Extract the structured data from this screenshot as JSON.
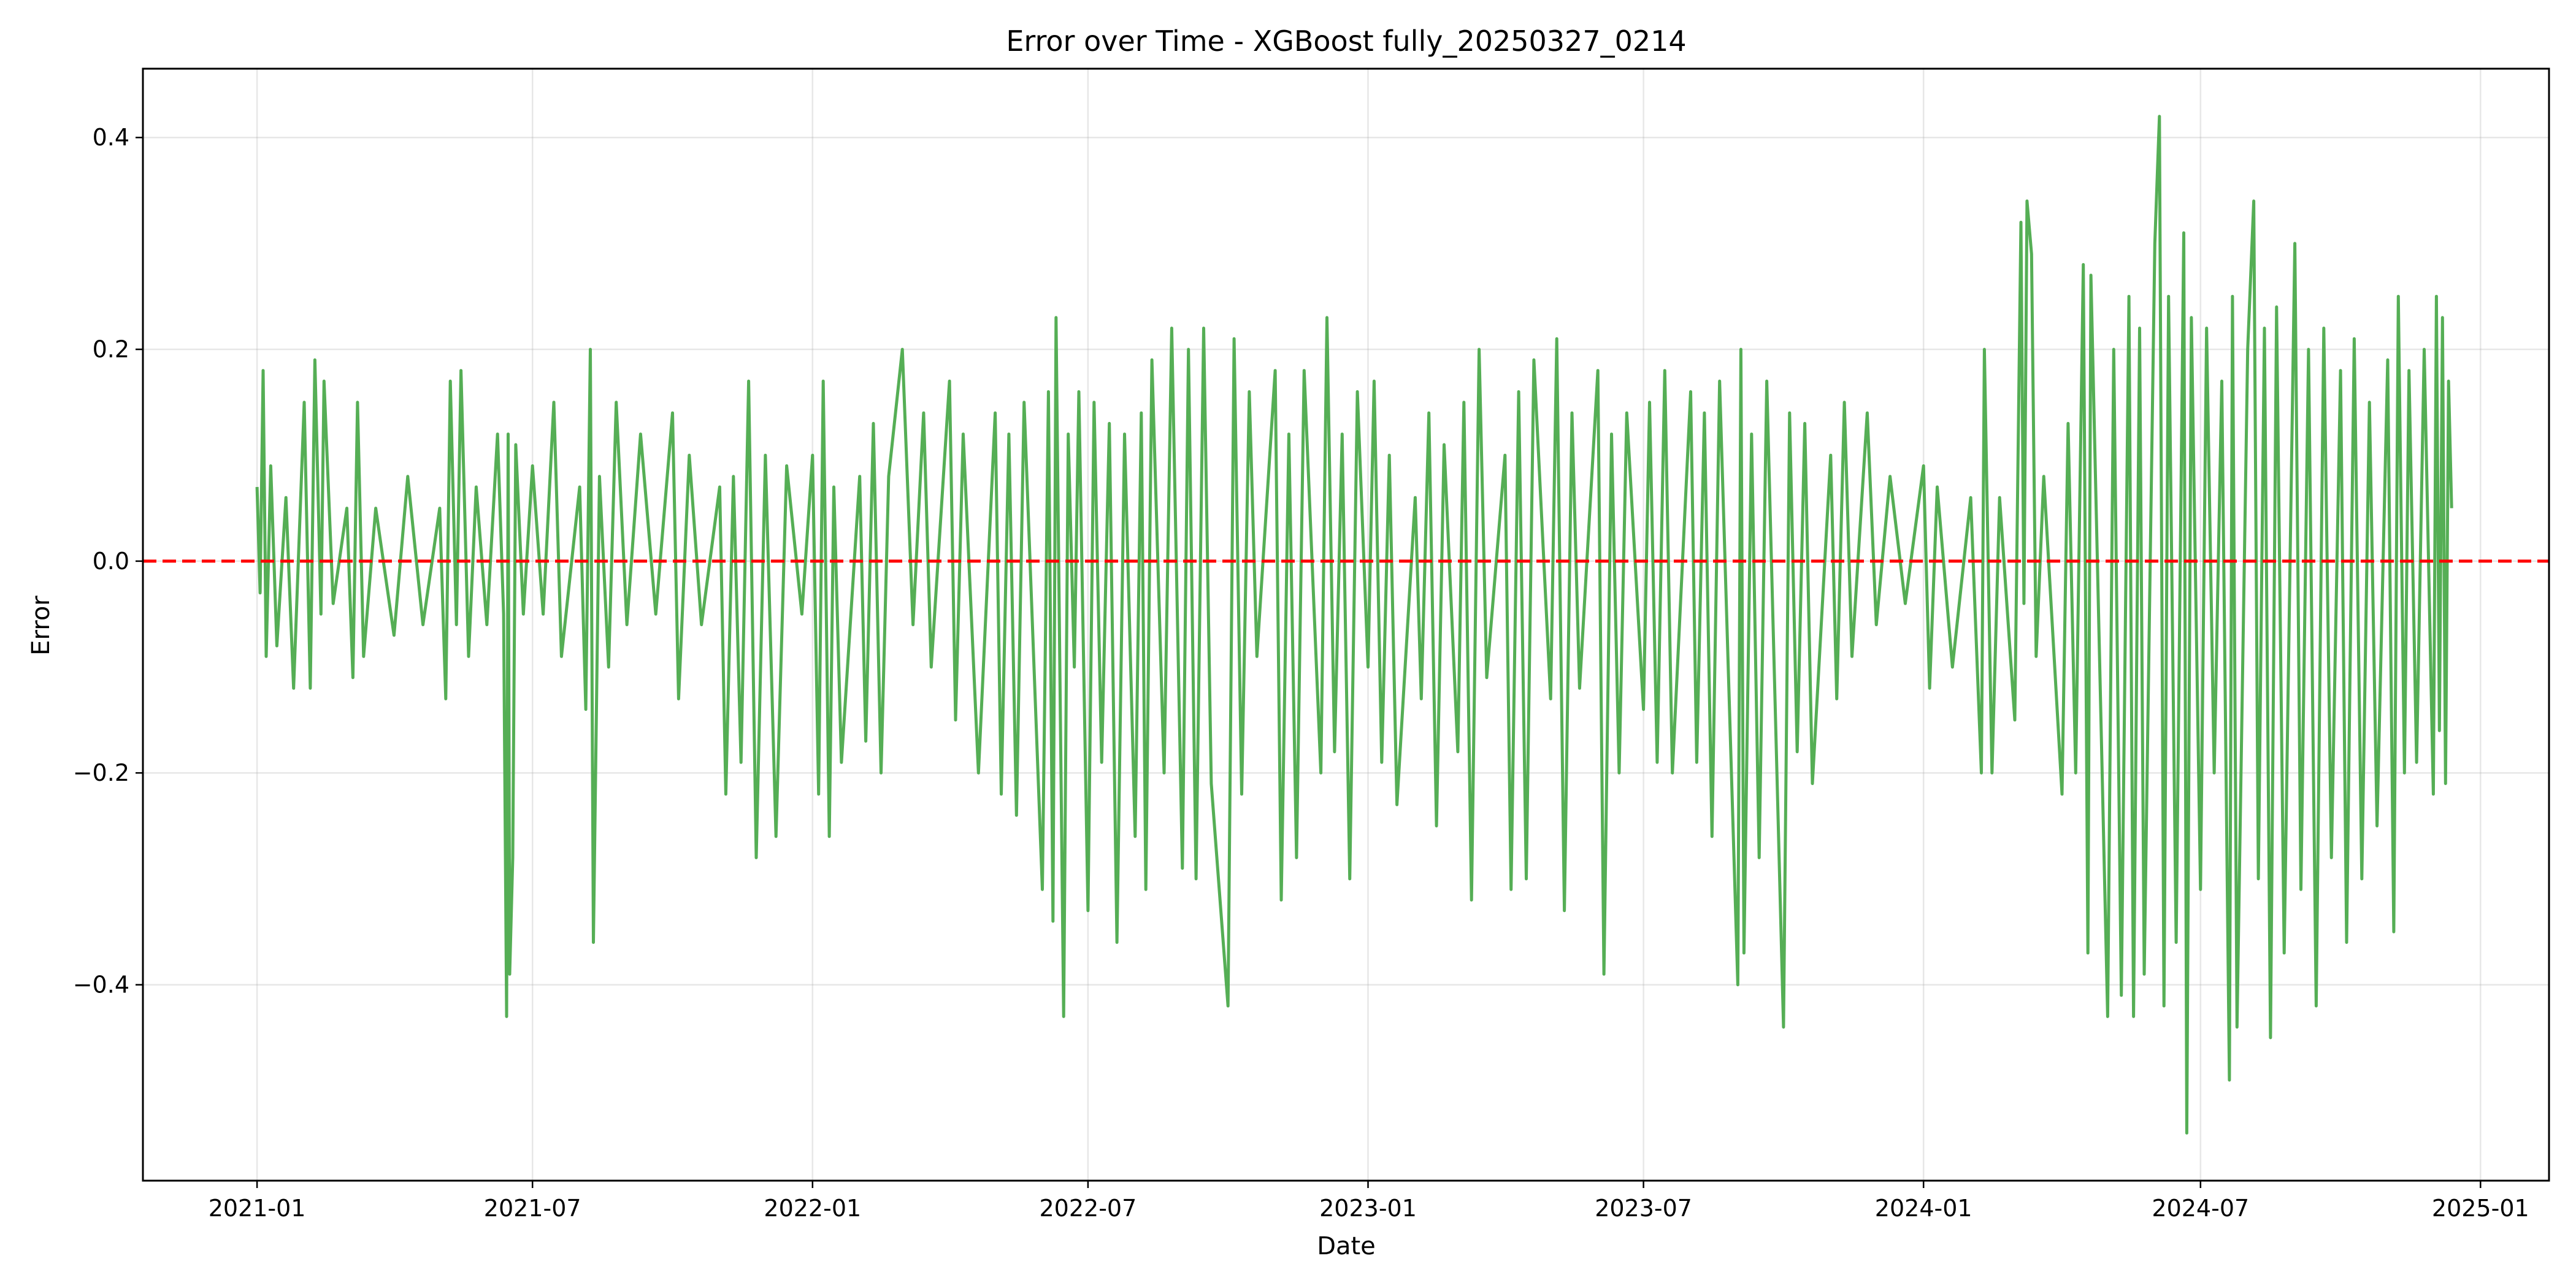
{
  "chart_data": {
    "type": "line",
    "title": "Error over Time - XGBoost fully_20250327_0214",
    "xlabel": "Date",
    "ylabel": "Error",
    "x_range": [
      "2020-10-18",
      "2025-02-15"
    ],
    "ylim": [
      -0.585,
      0.465
    ],
    "grid": true,
    "x_ticks": [
      {
        "date": "2021-01-01",
        "label": "2021-01"
      },
      {
        "date": "2021-07-01",
        "label": "2021-07"
      },
      {
        "date": "2022-01-01",
        "label": "2022-01"
      },
      {
        "date": "2022-07-01",
        "label": "2022-07"
      },
      {
        "date": "2023-01-01",
        "label": "2023-01"
      },
      {
        "date": "2023-07-01",
        "label": "2023-07"
      },
      {
        "date": "2024-01-01",
        "label": "2024-01"
      },
      {
        "date": "2024-07-01",
        "label": "2024-07"
      },
      {
        "date": "2025-01-01",
        "label": "2025-01"
      }
    ],
    "y_ticks": [
      {
        "value": 0.4,
        "label": "0.4"
      },
      {
        "value": 0.2,
        "label": "0.2"
      },
      {
        "value": 0.0,
        "label": "0.0"
      },
      {
        "value": -0.2,
        "label": "−0.2"
      },
      {
        "value": -0.4,
        "label": "−0.4"
      }
    ],
    "reference_line": {
      "y": 0.0,
      "color": "#ff0000",
      "style": "dashed"
    },
    "series": [
      {
        "color": "#4caa4c",
        "points": [
          [
            "2021-01-01",
            0.07
          ],
          [
            "2021-01-03",
            -0.03
          ],
          [
            "2021-01-05",
            0.18
          ],
          [
            "2021-01-07",
            -0.09
          ],
          [
            "2021-01-10",
            0.09
          ],
          [
            "2021-01-14",
            -0.08
          ],
          [
            "2021-01-20",
            0.06
          ],
          [
            "2021-01-25",
            -0.12
          ],
          [
            "2021-02-01",
            0.15
          ],
          [
            "2021-02-05",
            -0.12
          ],
          [
            "2021-02-08",
            0.19
          ],
          [
            "2021-02-12",
            -0.05
          ],
          [
            "2021-02-14",
            0.17
          ],
          [
            "2021-02-20",
            -0.04
          ],
          [
            "2021-03-01",
            0.05
          ],
          [
            "2021-03-05",
            -0.11
          ],
          [
            "2021-03-08",
            0.15
          ],
          [
            "2021-03-12",
            -0.09
          ],
          [
            "2021-03-20",
            0.05
          ],
          [
            "2021-04-01",
            -0.07
          ],
          [
            "2021-04-10",
            0.08
          ],
          [
            "2021-04-20",
            -0.06
          ],
          [
            "2021-05-01",
            0.05
          ],
          [
            "2021-05-05",
            -0.13
          ],
          [
            "2021-05-08",
            0.17
          ],
          [
            "2021-05-12",
            -0.06
          ],
          [
            "2021-05-15",
            0.18
          ],
          [
            "2021-05-20",
            -0.09
          ],
          [
            "2021-05-25",
            0.07
          ],
          [
            "2021-06-01",
            -0.06
          ],
          [
            "2021-06-08",
            0.12
          ],
          [
            "2021-06-12",
            -0.05
          ],
          [
            "2021-06-14",
            -0.43
          ],
          [
            "2021-06-15",
            0.12
          ],
          [
            "2021-06-16",
            -0.39
          ],
          [
            "2021-06-18",
            -0.28
          ],
          [
            "2021-06-20",
            0.11
          ],
          [
            "2021-06-25",
            -0.05
          ],
          [
            "2021-07-01",
            0.09
          ],
          [
            "2021-07-08",
            -0.05
          ],
          [
            "2021-07-15",
            0.15
          ],
          [
            "2021-07-20",
            -0.09
          ],
          [
            "2021-08-01",
            0.07
          ],
          [
            "2021-08-05",
            -0.14
          ],
          [
            "2021-08-08",
            0.2
          ],
          [
            "2021-08-10",
            -0.36
          ],
          [
            "2021-08-14",
            0.08
          ],
          [
            "2021-08-20",
            -0.1
          ],
          [
            "2021-08-25",
            0.15
          ],
          [
            "2021-09-01",
            -0.06
          ],
          [
            "2021-09-10",
            0.12
          ],
          [
            "2021-09-20",
            -0.05
          ],
          [
            "2021-10-01",
            0.14
          ],
          [
            "2021-10-05",
            -0.13
          ],
          [
            "2021-10-12",
            0.1
          ],
          [
            "2021-10-20",
            -0.06
          ],
          [
            "2021-11-01",
            0.07
          ],
          [
            "2021-11-05",
            -0.22
          ],
          [
            "2021-11-10",
            0.08
          ],
          [
            "2021-11-15",
            -0.19
          ],
          [
            "2021-11-20",
            0.17
          ],
          [
            "2021-11-25",
            -0.28
          ],
          [
            "2021-12-01",
            0.1
          ],
          [
            "2021-12-08",
            -0.26
          ],
          [
            "2021-12-15",
            0.09
          ],
          [
            "2021-12-25",
            -0.05
          ],
          [
            "2022-01-01",
            0.1
          ],
          [
            "2022-01-05",
            -0.22
          ],
          [
            "2022-01-08",
            0.17
          ],
          [
            "2022-01-12",
            -0.26
          ],
          [
            "2022-01-15",
            0.07
          ],
          [
            "2022-01-20",
            -0.19
          ],
          [
            "2022-02-01",
            0.08
          ],
          [
            "2022-02-05",
            -0.17
          ],
          [
            "2022-02-10",
            0.13
          ],
          [
            "2022-02-15",
            -0.2
          ],
          [
            "2022-02-20",
            0.08
          ],
          [
            "2022-03-01",
            0.2
          ],
          [
            "2022-03-08",
            -0.06
          ],
          [
            "2022-03-15",
            0.14
          ],
          [
            "2022-03-20",
            -0.1
          ],
          [
            "2022-04-01",
            0.17
          ],
          [
            "2022-04-05",
            -0.15
          ],
          [
            "2022-04-10",
            0.12
          ],
          [
            "2022-04-20",
            -0.2
          ],
          [
            "2022-05-01",
            0.14
          ],
          [
            "2022-05-05",
            -0.22
          ],
          [
            "2022-05-10",
            0.12
          ],
          [
            "2022-05-15",
            -0.24
          ],
          [
            "2022-05-20",
            0.15
          ],
          [
            "2022-06-01",
            -0.31
          ],
          [
            "2022-06-05",
            0.16
          ],
          [
            "2022-06-08",
            -0.34
          ],
          [
            "2022-06-10",
            0.23
          ],
          [
            "2022-06-15",
            -0.43
          ],
          [
            "2022-06-18",
            0.12
          ],
          [
            "2022-06-22",
            -0.1
          ],
          [
            "2022-06-25",
            0.16
          ],
          [
            "2022-07-01",
            -0.33
          ],
          [
            "2022-07-05",
            0.15
          ],
          [
            "2022-07-10",
            -0.19
          ],
          [
            "2022-07-15",
            0.13
          ],
          [
            "2022-07-20",
            -0.36
          ],
          [
            "2022-07-25",
            0.12
          ],
          [
            "2022-08-01",
            -0.26
          ],
          [
            "2022-08-05",
            0.14
          ],
          [
            "2022-08-08",
            -0.31
          ],
          [
            "2022-08-12",
            0.19
          ],
          [
            "2022-08-20",
            -0.2
          ],
          [
            "2022-08-25",
            0.22
          ],
          [
            "2022-09-01",
            -0.29
          ],
          [
            "2022-09-05",
            0.2
          ],
          [
            "2022-09-10",
            -0.3
          ],
          [
            "2022-09-15",
            0.22
          ],
          [
            "2022-09-20",
            -0.21
          ],
          [
            "2022-10-01",
            -0.42
          ],
          [
            "2022-10-05",
            0.21
          ],
          [
            "2022-10-10",
            -0.22
          ],
          [
            "2022-10-15",
            0.16
          ],
          [
            "2022-10-20",
            -0.09
          ],
          [
            "2022-11-01",
            0.18
          ],
          [
            "2022-11-05",
            -0.32
          ],
          [
            "2022-11-10",
            0.12
          ],
          [
            "2022-11-15",
            -0.28
          ],
          [
            "2022-11-20",
            0.18
          ],
          [
            "2022-12-01",
            -0.2
          ],
          [
            "2022-12-05",
            0.23
          ],
          [
            "2022-12-10",
            -0.18
          ],
          [
            "2022-12-15",
            0.12
          ],
          [
            "2022-12-20",
            -0.3
          ],
          [
            "2022-12-25",
            0.16
          ],
          [
            "2023-01-01",
            -0.1
          ],
          [
            "2023-01-05",
            0.17
          ],
          [
            "2023-01-10",
            -0.19
          ],
          [
            "2023-01-15",
            0.1
          ],
          [
            "2023-01-20",
            -0.23
          ],
          [
            "2023-02-01",
            0.06
          ],
          [
            "2023-02-05",
            -0.13
          ],
          [
            "2023-02-10",
            0.14
          ],
          [
            "2023-02-15",
            -0.25
          ],
          [
            "2023-02-20",
            0.11
          ],
          [
            "2023-03-01",
            -0.18
          ],
          [
            "2023-03-05",
            0.15
          ],
          [
            "2023-03-10",
            -0.32
          ],
          [
            "2023-03-15",
            0.2
          ],
          [
            "2023-03-20",
            -0.11
          ],
          [
            "2023-04-01",
            0.1
          ],
          [
            "2023-04-05",
            -0.31
          ],
          [
            "2023-04-10",
            0.16
          ],
          [
            "2023-04-15",
            -0.3
          ],
          [
            "2023-04-20",
            0.19
          ],
          [
            "2023-05-01",
            -0.13
          ],
          [
            "2023-05-05",
            0.21
          ],
          [
            "2023-05-10",
            -0.33
          ],
          [
            "2023-05-15",
            0.14
          ],
          [
            "2023-05-20",
            -0.12
          ],
          [
            "2023-06-01",
            0.18
          ],
          [
            "2023-06-05",
            -0.39
          ],
          [
            "2023-06-10",
            0.12
          ],
          [
            "2023-06-15",
            -0.2
          ],
          [
            "2023-06-20",
            0.14
          ],
          [
            "2023-07-01",
            -0.14
          ],
          [
            "2023-07-05",
            0.15
          ],
          [
            "2023-07-10",
            -0.19
          ],
          [
            "2023-07-15",
            0.18
          ],
          [
            "2023-07-20",
            -0.2
          ],
          [
            "2023-08-01",
            0.16
          ],
          [
            "2023-08-05",
            -0.19
          ],
          [
            "2023-08-10",
            0.14
          ],
          [
            "2023-08-15",
            -0.26
          ],
          [
            "2023-08-20",
            0.17
          ],
          [
            "2023-09-01",
            -0.4
          ],
          [
            "2023-09-03",
            0.2
          ],
          [
            "2023-09-05",
            -0.37
          ],
          [
            "2023-09-10",
            0.12
          ],
          [
            "2023-09-15",
            -0.28
          ],
          [
            "2023-09-20",
            0.17
          ],
          [
            "2023-10-01",
            -0.44
          ],
          [
            "2023-10-05",
            0.14
          ],
          [
            "2023-10-10",
            -0.18
          ],
          [
            "2023-10-15",
            0.13
          ],
          [
            "2023-10-20",
            -0.21
          ],
          [
            "2023-11-01",
            0.1
          ],
          [
            "2023-11-05",
            -0.13
          ],
          [
            "2023-11-10",
            0.15
          ],
          [
            "2023-11-15",
            -0.09
          ],
          [
            "2023-11-25",
            0.14
          ],
          [
            "2023-12-01",
            -0.06
          ],
          [
            "2023-12-10",
            0.08
          ],
          [
            "2023-12-20",
            -0.04
          ],
          [
            "2024-01-01",
            0.09
          ],
          [
            "2024-01-05",
            -0.12
          ],
          [
            "2024-01-10",
            0.07
          ],
          [
            "2024-01-20",
            -0.1
          ],
          [
            "2024-02-01",
            0.06
          ],
          [
            "2024-02-08",
            -0.2
          ],
          [
            "2024-02-10",
            0.2
          ],
          [
            "2024-02-15",
            -0.2
          ],
          [
            "2024-02-20",
            0.06
          ],
          [
            "2024-03-01",
            -0.15
          ],
          [
            "2024-03-05",
            0.32
          ],
          [
            "2024-03-07",
            -0.04
          ],
          [
            "2024-03-09",
            0.34
          ],
          [
            "2024-03-12",
            0.29
          ],
          [
            "2024-03-15",
            -0.09
          ],
          [
            "2024-03-20",
            0.08
          ],
          [
            "2024-04-01",
            -0.22
          ],
          [
            "2024-04-05",
            0.13
          ],
          [
            "2024-04-10",
            -0.2
          ],
          [
            "2024-04-15",
            0.28
          ],
          [
            "2024-04-18",
            -0.37
          ],
          [
            "2024-04-20",
            0.27
          ],
          [
            "2024-05-01",
            -0.43
          ],
          [
            "2024-05-05",
            0.2
          ],
          [
            "2024-05-10",
            -0.41
          ],
          [
            "2024-05-15",
            0.25
          ],
          [
            "2024-05-18",
            -0.43
          ],
          [
            "2024-05-22",
            0.22
          ],
          [
            "2024-05-25",
            -0.39
          ],
          [
            "2024-06-01",
            0.3
          ],
          [
            "2024-06-04",
            0.42
          ],
          [
            "2024-06-07",
            -0.42
          ],
          [
            "2024-06-10",
            0.25
          ],
          [
            "2024-06-15",
            -0.36
          ],
          [
            "2024-06-20",
            0.31
          ],
          [
            "2024-06-22",
            -0.54
          ],
          [
            "2024-06-25",
            0.23
          ],
          [
            "2024-07-01",
            -0.31
          ],
          [
            "2024-07-05",
            0.22
          ],
          [
            "2024-07-10",
            -0.2
          ],
          [
            "2024-07-15",
            0.17
          ],
          [
            "2024-07-20",
            -0.49
          ],
          [
            "2024-07-22",
            0.25
          ],
          [
            "2024-07-25",
            -0.44
          ],
          [
            "2024-08-01",
            0.2
          ],
          [
            "2024-08-05",
            0.34
          ],
          [
            "2024-08-08",
            -0.3
          ],
          [
            "2024-08-12",
            0.22
          ],
          [
            "2024-08-16",
            -0.45
          ],
          [
            "2024-08-20",
            0.24
          ],
          [
            "2024-08-25",
            -0.37
          ],
          [
            "2024-09-01",
            0.3
          ],
          [
            "2024-09-05",
            -0.31
          ],
          [
            "2024-09-10",
            0.2
          ],
          [
            "2024-09-15",
            -0.42
          ],
          [
            "2024-09-20",
            0.22
          ],
          [
            "2024-09-25",
            -0.28
          ],
          [
            "2024-10-01",
            0.18
          ],
          [
            "2024-10-05",
            -0.36
          ],
          [
            "2024-10-10",
            0.21
          ],
          [
            "2024-10-15",
            -0.3
          ],
          [
            "2024-10-20",
            0.15
          ],
          [
            "2024-10-25",
            -0.25
          ],
          [
            "2024-11-01",
            0.19
          ],
          [
            "2024-11-05",
            -0.35
          ],
          [
            "2024-11-08",
            0.25
          ],
          [
            "2024-11-12",
            -0.2
          ],
          [
            "2024-11-15",
            0.18
          ],
          [
            "2024-11-20",
            -0.19
          ],
          [
            "2024-11-25",
            0.2
          ],
          [
            "2024-12-01",
            -0.22
          ],
          [
            "2024-12-03",
            0.25
          ],
          [
            "2024-12-05",
            -0.16
          ],
          [
            "2024-12-07",
            0.23
          ],
          [
            "2024-12-09",
            -0.21
          ],
          [
            "2024-12-11",
            0.17
          ],
          [
            "2024-12-13",
            0.05
          ]
        ]
      }
    ]
  }
}
